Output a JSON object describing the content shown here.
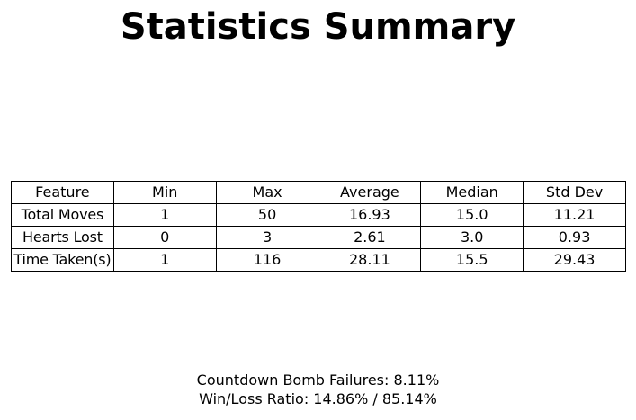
{
  "title": "Statistics Summary",
  "chart_data": {
    "type": "table",
    "title": "Statistics Summary",
    "columns": [
      "Feature",
      "Min",
      "Max",
      "Average",
      "Median",
      "Std Dev"
    ],
    "rows": [
      [
        "Total Moves",
        "1",
        "50",
        "16.93",
        "15.0",
        "11.21"
      ],
      [
        "Hearts Lost",
        "0",
        "3",
        "2.61",
        "3.0",
        "0.93"
      ],
      [
        "Time Taken(s)",
        "1",
        "116",
        "28.11",
        "15.5",
        "29.43"
      ]
    ]
  },
  "footer": {
    "countdown_bomb_failures": "Countdown Bomb Failures: 8.11%",
    "win_loss_ratio": "Win/Loss Ratio: 14.86% / 85.14%"
  }
}
